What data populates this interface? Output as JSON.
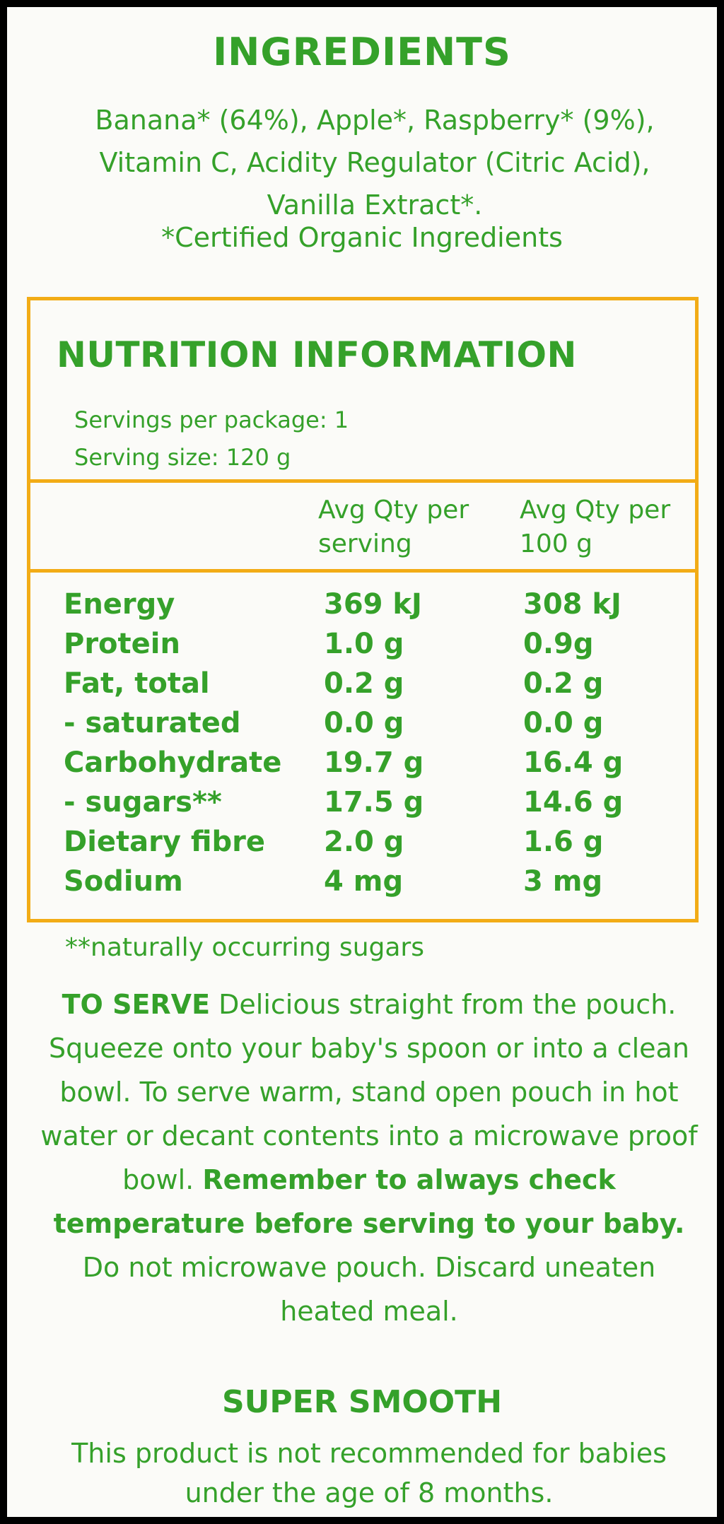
{
  "ingredients": {
    "title": "INGREDIENTS",
    "text": "Banana* (64%), Apple*, Raspberry* (9%), Vitamin C, Acidity Regulator (Citric Acid), Vanilla Extract*.",
    "certified": "*Certified Organic Ingredients"
  },
  "nutrition": {
    "title": "NUTRITION INFORMATION",
    "servings_per_package": "Servings per package: 1",
    "serving_size": "Serving size: 120 g",
    "col_serving": "Avg Qty per serving",
    "col_100g": "Avg Qty per 100 g",
    "rows": [
      {
        "label": "Energy",
        "per_serving": "369 kJ",
        "per_100g": "308 kJ"
      },
      {
        "label": "Protein",
        "per_serving": "1.0 g",
        "per_100g": "0.9g"
      },
      {
        "label": "Fat, total",
        "per_serving": "0.2 g",
        "per_100g": "0.2 g"
      },
      {
        "label": "- saturated",
        "per_serving": "0.0 g",
        "per_100g": "0.0 g"
      },
      {
        "label": "Carbohydrate",
        "per_serving": "19.7 g",
        "per_100g": "16.4 g"
      },
      {
        "label": "- sugars**",
        "per_serving": "17.5 g",
        "per_100g": "14.6 g"
      },
      {
        "label": "Dietary fibre",
        "per_serving": "2.0 g",
        "per_100g": "1.6 g"
      },
      {
        "label": "Sodium",
        "per_serving": "4 mg",
        "per_100g": "3 mg"
      }
    ],
    "footnote": "**naturally occurring sugars"
  },
  "serve": {
    "heading": "TO SERVE",
    "text1": "Delicious straight from the pouch. Squeeze onto your baby's spoon or into a clean bowl. To serve warm, stand open pouch in hot water or decant contents into a microwave proof bowl.",
    "bold_text": "Remember to always check temperature before serving to your baby.",
    "text2": "Do not microwave pouch. Discard uneaten heated meal."
  },
  "super_smooth": {
    "title": "SUPER SMOOTH",
    "text": "This product is not recommended for babies under the age of 8 months."
  },
  "colors": {
    "text_green": "#35a12a",
    "border_orange": "#f2ac16",
    "background": "#fbfbf8"
  }
}
